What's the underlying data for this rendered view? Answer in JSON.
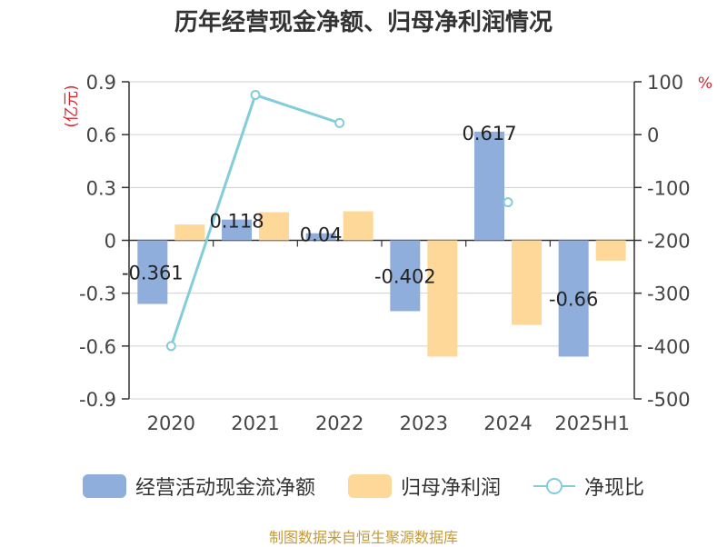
{
  "chart_data": {
    "type": "bar",
    "title": "历年经营现金净额、归母净利润情况",
    "categories": [
      "2020",
      "2021",
      "2022",
      "2023",
      "2024",
      "2025H1"
    ],
    "series": [
      {
        "name": "经营活动现金流净额",
        "type": "bar",
        "axis": "left",
        "values": [
          -0.361,
          0.118,
          0.04,
          -0.402,
          0.617,
          -0.66
        ],
        "labels": [
          "-0.361",
          "0.118",
          "0.04",
          "-0.402",
          "0.617",
          "-0.66"
        ],
        "color": "#8faedb"
      },
      {
        "name": "归母净利润",
        "type": "bar",
        "axis": "left",
        "values": [
          0.09,
          0.16,
          0.165,
          -0.66,
          -0.48,
          -0.115
        ],
        "color": "#fdd898"
      },
      {
        "name": "净现比",
        "type": "line",
        "axis": "right",
        "values": [
          -400,
          75,
          22,
          null,
          -128,
          null
        ],
        "color": "#83cddb"
      }
    ],
    "ylabel_left": "(亿元)",
    "ylabel_right": "%",
    "ylim_left": [
      -0.9,
      0.9
    ],
    "ylim_right": [
      -500,
      100
    ],
    "yticks_left": [
      "0.9",
      "0.6",
      "0.3",
      "0",
      "-0.3",
      "-0.6",
      "-0.9"
    ],
    "yticks_right": [
      "100",
      "0",
      "-100",
      "-200",
      "-300",
      "-400",
      "-500"
    ],
    "grid": true,
    "legend_position": "bottom"
  },
  "legend": {
    "item1": "经营活动现金流净额",
    "item2": "归母净利润",
    "item3": "净现比"
  },
  "source": "制图数据来自恒生聚源数据库"
}
